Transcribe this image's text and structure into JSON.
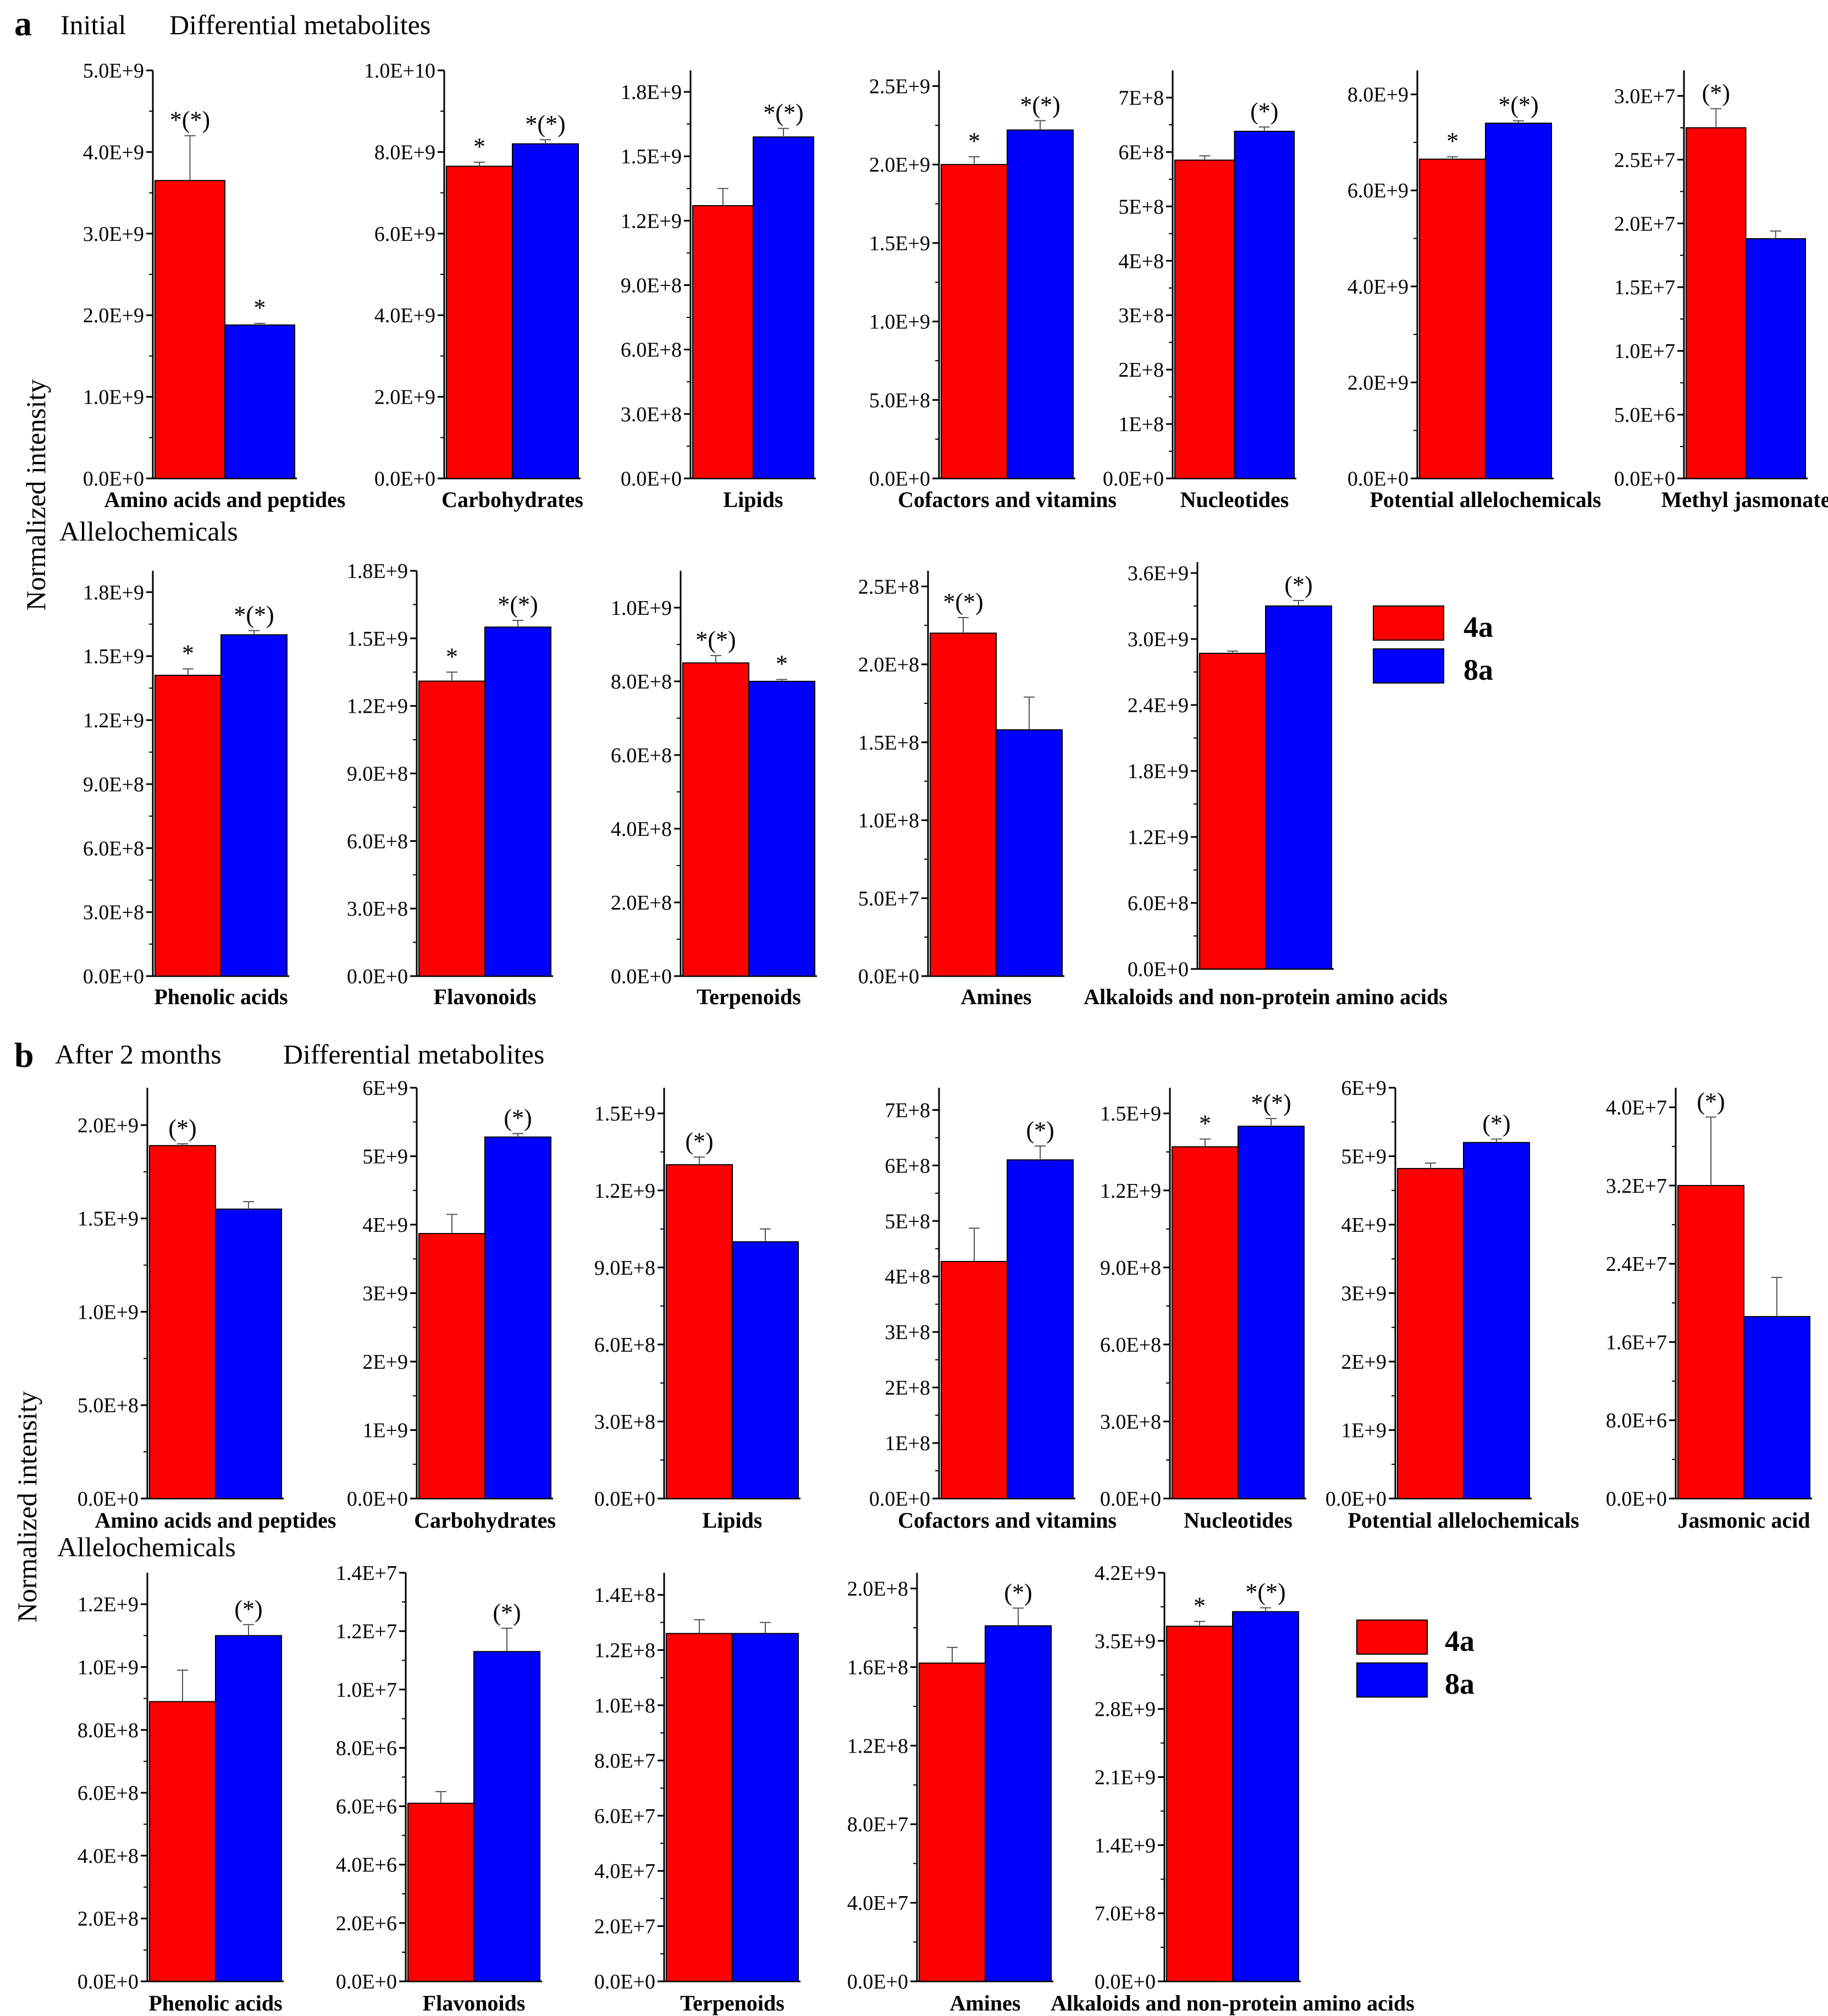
{
  "figure": {
    "legend": [
      {
        "label": "4a",
        "color": "#ff0000"
      },
      {
        "label": "8a",
        "color": "#0000ff"
      }
    ],
    "ylabel": "Normalized intensity"
  },
  "panels": [
    {
      "letter": "a",
      "title_left": "Initial",
      "title_right": "Differential metabolites",
      "row2_title": "Allelochemicals"
    },
    {
      "letter": "b",
      "title_left": "After 2 months",
      "title_right": "Differential metabolites",
      "row2_title": "Allelochemicals"
    }
  ],
  "chart_data": [
    {
      "type": "bar",
      "panel": "a",
      "row": 1,
      "title": "Amino acids and peptides",
      "categories": [
        "4a",
        "8a"
      ],
      "values": [
        3650000000.0,
        1880000000.0
      ],
      "errors": [
        550000000.0,
        20000000.0
      ],
      "sig": [
        "*(*)",
        "*"
      ],
      "ylim": [
        0,
        5000000000.0
      ],
      "ticks": [
        "0.0E+0",
        "1.0E+9",
        "2.0E+9",
        "3.0E+9",
        "4.0E+9",
        "5.0E+9"
      ],
      "tick_values": [
        0,
        1000000000.0,
        2000000000.0,
        3000000000.0,
        4000000000.0,
        5000000000.0
      ]
    },
    {
      "type": "bar",
      "panel": "a",
      "row": 1,
      "title": "Carbohydrates",
      "categories": [
        "4a",
        "8a"
      ],
      "values": [
        7650000000.0,
        8200000000.0
      ],
      "errors": [
        100000000.0,
        100000000.0
      ],
      "sig": [
        "*",
        "*(*)"
      ],
      "ylim": [
        0,
        10000000000.0
      ],
      "ticks": [
        "0.0E+0",
        "2.0E+9",
        "4.0E+9",
        "6.0E+9",
        "8.0E+9",
        "1.0E+10"
      ],
      "tick_values": [
        0,
        2000000000.0,
        4000000000.0,
        6000000000.0,
        8000000000.0,
        10000000000.0
      ]
    },
    {
      "type": "bar",
      "panel": "a",
      "row": 1,
      "title": "Lipids",
      "categories": [
        "4a",
        "8a"
      ],
      "values": [
        1270000000.0,
        1590000000.0
      ],
      "errors": [
        80000000.0,
        40000000.0
      ],
      "sig": [
        "",
        "*(*)"
      ],
      "ylim": [
        0,
        1900000000.0
      ],
      "ticks": [
        "0.0E+0",
        "3.0E+8",
        "6.0E+8",
        "9.0E+8",
        "1.2E+9",
        "1.5E+9",
        "1.8E+9"
      ],
      "tick_values": [
        0,
        300000000.0,
        600000000.0,
        900000000.0,
        1200000000.0,
        1500000000.0,
        1800000000.0
      ]
    },
    {
      "type": "bar",
      "panel": "a",
      "row": 1,
      "title": "Cofactors and vitamins",
      "categories": [
        "4a",
        "8a"
      ],
      "values": [
        2000000000.0,
        2220000000.0
      ],
      "errors": [
        50000000.0,
        60000000.0
      ],
      "sig": [
        "*",
        "*(*)"
      ],
      "ylim": [
        0,
        2600000000.0
      ],
      "ticks": [
        "0.0E+0",
        "5.0E+8",
        "1.0E+9",
        "1.5E+9",
        "2.0E+9",
        "2.5E+9"
      ],
      "tick_values": [
        0,
        500000000.0,
        1000000000.0,
        1500000000.0,
        2000000000.0,
        2500000000.0
      ]
    },
    {
      "type": "bar",
      "panel": "a",
      "row": 1,
      "title": "Nucleotides",
      "categories": [
        "4a",
        "8a"
      ],
      "values": [
        585000000.0,
        638000000.0
      ],
      "errors": [
        8000000.0,
        8000000.0
      ],
      "sig": [
        "",
        "(*)"
      ],
      "ylim": [
        0,
        750000000.0
      ],
      "ticks": [
        "0.0E+0",
        "1E+8",
        "2E+8",
        "3E+8",
        "4E+8",
        "5E+8",
        "6E+8",
        "7E+8"
      ],
      "tick_values": [
        0,
        100000000.0,
        200000000.0,
        300000000.0,
        400000000.0,
        500000000.0,
        600000000.0,
        700000000.0
      ]
    },
    {
      "type": "bar",
      "panel": "a",
      "row": 1,
      "title": "Potential allelochemicals",
      "categories": [
        "4a",
        "8a"
      ],
      "values": [
        6650000000.0,
        7400000000.0
      ],
      "errors": [
        50000000.0,
        50000000.0
      ],
      "sig": [
        "*",
        "*(*)"
      ],
      "ylim": [
        0,
        8500000000.0
      ],
      "ticks": [
        "0.0E+0",
        "2.0E+9",
        "4.0E+9",
        "6.0E+9",
        "8.0E+9"
      ],
      "tick_values": [
        0,
        2000000000.0,
        4000000000.0,
        6000000000.0,
        8000000000.0
      ]
    },
    {
      "type": "bar",
      "panel": "a",
      "row": 1,
      "title": "Methyl jasmonate",
      "categories": [
        "4a",
        "8a"
      ],
      "values": [
        27500000.0,
        18800000.0
      ],
      "errors": [
        1500000.0,
        600000.0
      ],
      "sig": [
        "(*)",
        ""
      ],
      "ylim": [
        0,
        32000000.0
      ],
      "ticks": [
        "0.0E+0",
        "5.0E+6",
        "1.0E+7",
        "1.5E+7",
        "2.0E+7",
        "2.5E+7",
        "3.0E+7"
      ],
      "tick_values": [
        0,
        5000000.0,
        10000000.0,
        15000000.0,
        20000000.0,
        25000000.0,
        30000000.0
      ]
    },
    {
      "type": "bar",
      "panel": "a",
      "row": 2,
      "title": "Phenolic acids",
      "categories": [
        "4a",
        "8a"
      ],
      "values": [
        1410000000.0,
        1600000000.0
      ],
      "errors": [
        30000000.0,
        20000000.0
      ],
      "sig": [
        "*",
        "*(*)"
      ],
      "ylim": [
        0,
        1900000000.0
      ],
      "ticks": [
        "0.0E+0",
        "3.0E+8",
        "6.0E+8",
        "9.0E+8",
        "1.2E+9",
        "1.5E+9",
        "1.8E+9"
      ],
      "tick_values": [
        0,
        300000000.0,
        600000000.0,
        900000000.0,
        1200000000.0,
        1500000000.0,
        1800000000.0
      ]
    },
    {
      "type": "bar",
      "panel": "a",
      "row": 2,
      "title": "Flavonoids",
      "categories": [
        "4a",
        "8a"
      ],
      "values": [
        1310000000.0,
        1550000000.0
      ],
      "errors": [
        40000000.0,
        30000000.0
      ],
      "sig": [
        "*",
        "*(*)"
      ],
      "ylim": [
        0,
        1800000000.0
      ],
      "ticks": [
        "0.0E+0",
        "3.0E+8",
        "6.0E+8",
        "9.0E+8",
        "1.2E+9",
        "1.5E+9",
        "1.8E+9"
      ],
      "tick_values": [
        0,
        300000000.0,
        600000000.0,
        900000000.0,
        1200000000.0,
        1500000000.0,
        1800000000.0
      ]
    },
    {
      "type": "bar",
      "panel": "a",
      "row": 2,
      "title": "Terpenoids",
      "categories": [
        "4a",
        "8a"
      ],
      "values": [
        850000000.0,
        800000000.0
      ],
      "errors": [
        20000000.0,
        5000000.0
      ],
      "sig": [
        "*(*)",
        "*"
      ],
      "ylim": [
        0,
        1100000000.0
      ],
      "ticks": [
        "0.0E+0",
        "2.0E+8",
        "4.0E+8",
        "6.0E+8",
        "8.0E+8",
        "1.0E+9"
      ],
      "tick_values": [
        0,
        200000000.0,
        400000000.0,
        600000000.0,
        800000000.0,
        1000000000.0
      ]
    },
    {
      "type": "bar",
      "panel": "a",
      "row": 2,
      "title": "Amines",
      "categories": [
        "4a",
        "8a"
      ],
      "values": [
        220000000.0,
        158000000.0
      ],
      "errors": [
        10000000.0,
        21000000.0
      ],
      "sig": [
        "*(*)",
        ""
      ],
      "ylim": [
        0,
        260000000.0
      ],
      "ticks": [
        "0.0E+0",
        "5.0E+7",
        "1.0E+8",
        "1.5E+8",
        "2.0E+8",
        "2.5E+8"
      ],
      "tick_values": [
        0,
        50000000.0,
        100000000.0,
        150000000.0,
        200000000.0,
        250000000.0
      ]
    },
    {
      "type": "bar",
      "panel": "a",
      "row": 2,
      "title": "Alkaloids and non-protein amino acids",
      "categories": [
        "4a",
        "8a"
      ],
      "values": [
        2870000000.0,
        3300000000.0
      ],
      "errors": [
        20000000.0,
        50000000.0
      ],
      "sig": [
        "",
        "(*)"
      ],
      "ylim": [
        0,
        3700000000.0
      ],
      "ticks": [
        "0.0E+0",
        "6.0E+8",
        "1.2E+9",
        "1.8E+9",
        "2.4E+9",
        "3.0E+9",
        "3.6E+9"
      ],
      "tick_values": [
        0,
        600000000.0,
        1200000000.0,
        1800000000.0,
        2400000000.0,
        3000000000.0,
        3600000000.0
      ]
    },
    {
      "type": "bar",
      "panel": "b",
      "row": 1,
      "title": "Amino acids and peptides",
      "categories": [
        "4a",
        "8a"
      ],
      "values": [
        1890000000.0,
        1550000000.0
      ],
      "errors": [
        10000000.0,
        40000000.0
      ],
      "sig": [
        "(*)",
        ""
      ],
      "ylim": [
        0,
        2200000000.0
      ],
      "ticks": [
        "0.0E+0",
        "5.0E+8",
        "1.0E+9",
        "1.5E+9",
        "2.0E+9"
      ],
      "tick_values": [
        0,
        500000000.0,
        1000000000.0,
        1500000000.0,
        2000000000.0
      ]
    },
    {
      "type": "bar",
      "panel": "b",
      "row": 1,
      "title": "Carbohydrates",
      "categories": [
        "4a",
        "8a"
      ],
      "values": [
        3870000000.0,
        5280000000.0
      ],
      "errors": [
        280000000.0,
        50000000.0
      ],
      "sig": [
        "",
        "(*)"
      ],
      "ylim": [
        0,
        6000000000.0
      ],
      "ticks": [
        "0.0E+0",
        "1E+9",
        "2E+9",
        "3E+9",
        "4E+9",
        "5E+9",
        "6E+9"
      ],
      "tick_values": [
        0,
        1000000000.0,
        2000000000.0,
        3000000000.0,
        4000000000.0,
        5000000000.0,
        6000000000.0
      ]
    },
    {
      "type": "bar",
      "panel": "b",
      "row": 1,
      "title": "Lipids",
      "categories": [
        "4a",
        "8a"
      ],
      "values": [
        1300000000.0,
        1000000000.0
      ],
      "errors": [
        30000000.0,
        50000000.0
      ],
      "sig": [
        "(*)",
        ""
      ],
      "ylim": [
        0,
        1600000000.0
      ],
      "ticks": [
        "0.0E+0",
        "3.0E+8",
        "6.0E+8",
        "9.0E+8",
        "1.2E+9",
        "1.5E+9"
      ],
      "tick_values": [
        0,
        300000000.0,
        600000000.0,
        900000000.0,
        1200000000.0,
        1500000000.0
      ]
    },
    {
      "type": "bar",
      "panel": "b",
      "row": 1,
      "title": "Cofactors and vitamins",
      "categories": [
        "4a",
        "8a"
      ],
      "values": [
        427000000.0,
        610000000.0
      ],
      "errors": [
        60000000.0,
        25000000.0
      ],
      "sig": [
        "",
        "(*)"
      ],
      "ylim": [
        0,
        740000000.0
      ],
      "ticks": [
        "0.0E+0",
        "1E+8",
        "2E+8",
        "3E+8",
        "4E+8",
        "5E+8",
        "6E+8",
        "7E+8"
      ],
      "tick_values": [
        0,
        100000000.0,
        200000000.0,
        300000000.0,
        400000000.0,
        500000000.0,
        600000000.0,
        700000000.0
      ]
    },
    {
      "type": "bar",
      "panel": "b",
      "row": 1,
      "title": "Nucleotides",
      "categories": [
        "4a",
        "8a"
      ],
      "values": [
        1370000000.0,
        1450000000.0
      ],
      "errors": [
        30000000.0,
        30000000.0
      ],
      "sig": [
        "*",
        "*(*)"
      ],
      "ylim": [
        0,
        1600000000.0
      ],
      "ticks": [
        "0.0E+0",
        "3.0E+8",
        "6.0E+8",
        "9.0E+8",
        "1.2E+9",
        "1.5E+9"
      ],
      "tick_values": [
        0,
        300000000.0,
        600000000.0,
        900000000.0,
        1200000000.0,
        1500000000.0
      ]
    },
    {
      "type": "bar",
      "panel": "b",
      "row": 1,
      "title": "Potential allelochemicals",
      "categories": [
        "4a",
        "8a"
      ],
      "values": [
        4820000000.0,
        5200000000.0
      ],
      "errors": [
        80000000.0,
        50000000.0
      ],
      "sig": [
        "",
        "(*)"
      ],
      "ylim": [
        0,
        6000000000.0
      ],
      "ticks": [
        "0.0E+0",
        "1E+9",
        "2E+9",
        "3E+9",
        "4E+9",
        "5E+9",
        "6E+9"
      ],
      "tick_values": [
        0,
        1000000000.0,
        2000000000.0,
        3000000000.0,
        4000000000.0,
        5000000000.0,
        6000000000.0
      ]
    },
    {
      "type": "bar",
      "panel": "b",
      "row": 1,
      "title": "Jasmonic acid",
      "categories": [
        "4a",
        "8a"
      ],
      "values": [
        32000000.0,
        18600000.0
      ],
      "errors": [
        7000000.0,
        4000000.0
      ],
      "sig": [
        "(*)",
        ""
      ],
      "ylim": [
        0,
        42000000.0
      ],
      "ticks": [
        "0.0E+0",
        "8.0E+6",
        "1.6E+7",
        "2.4E+7",
        "3.2E+7",
        "4.0E+7"
      ],
      "tick_values": [
        0,
        8000000.0,
        16000000.0,
        24000000.0,
        32000000.0,
        40000000.0
      ]
    },
    {
      "type": "bar",
      "panel": "b",
      "row": 2,
      "title": "Phenolic acids",
      "categories": [
        "4a",
        "8a"
      ],
      "values": [
        890000000.0,
        1100000000.0
      ],
      "errors": [
        100000000.0,
        35000000.0
      ],
      "sig": [
        "",
        "(*)"
      ],
      "ylim": [
        0,
        1300000000.0
      ],
      "ticks": [
        "0.0E+0",
        "2.0E+8",
        "4.0E+8",
        "6.0E+8",
        "8.0E+8",
        "1.0E+9",
        "1.2E+9"
      ],
      "tick_values": [
        0,
        200000000.0,
        400000000.0,
        600000000.0,
        800000000.0,
        1000000000.0,
        1200000000.0
      ]
    },
    {
      "type": "bar",
      "panel": "b",
      "row": 2,
      "title": "Flavonoids",
      "categories": [
        "4a",
        "8a"
      ],
      "values": [
        6100000.0,
        11300000.0
      ],
      "errors": [
        400000.0,
        800000.0
      ],
      "sig": [
        "",
        "(*)"
      ],
      "ylim": [
        0,
        14000000.0
      ],
      "ticks": [
        "0.0E+0",
        "2.0E+6",
        "4.0E+6",
        "6.0E+6",
        "8.0E+6",
        "1.0E+7",
        "1.2E+7",
        "1.4E+7"
      ],
      "tick_values": [
        0,
        2000000.0,
        4000000.0,
        6000000.0,
        8000000.0,
        10000000.0,
        12000000.0,
        14000000.0
      ]
    },
    {
      "type": "bar",
      "panel": "b",
      "row": 2,
      "title": "Terpenoids",
      "categories": [
        "4a",
        "8a"
      ],
      "values": [
        126000000.0,
        126000000.0
      ],
      "errors": [
        5000000.0,
        4000000.0
      ],
      "sig": [
        "",
        ""
      ],
      "ylim": [
        0,
        148000000.0
      ],
      "ticks": [
        "0.0E+0",
        "2.0E+7",
        "4.0E+7",
        "6.0E+7",
        "8.0E+7",
        "1.0E+8",
        "1.2E+8",
        "1.4E+8"
      ],
      "tick_values": [
        0,
        20000000.0,
        40000000.0,
        60000000.0,
        80000000.0,
        100000000.0,
        120000000.0,
        140000000.0
      ]
    },
    {
      "type": "bar",
      "panel": "b",
      "row": 2,
      "title": "Amines",
      "categories": [
        "4a",
        "8a"
      ],
      "values": [
        162000000.0,
        181000000.0
      ],
      "errors": [
        8000000.0,
        9000000.0
      ],
      "sig": [
        "",
        "(*)"
      ],
      "ylim": [
        0,
        208000000.0
      ],
      "ticks": [
        "0.0E+0",
        "4.0E+7",
        "8.0E+7",
        "1.2E+8",
        "1.6E+8",
        "2.0E+8"
      ],
      "tick_values": [
        0,
        40000000.0,
        80000000.0,
        120000000.0,
        160000000.0,
        200000000.0
      ]
    },
    {
      "type": "bar",
      "panel": "b",
      "row": 2,
      "title": "Alkaloids and non-protein amino acids",
      "categories": [
        "4a",
        "8a"
      ],
      "values": [
        3650000000.0,
        3800000000.0
      ],
      "errors": [
        50000000.0,
        40000000.0
      ],
      "sig": [
        "*",
        "*(*)"
      ],
      "ylim": [
        0,
        4200000000.0
      ],
      "ticks": [
        "0.0E+0",
        "7.0E+8",
        "1.4E+9",
        "2.1E+9",
        "2.8E+9",
        "3.5E+9",
        "4.2E+9"
      ],
      "tick_values": [
        0,
        700000000.0,
        1400000000.0,
        2100000000.0,
        2800000000.0,
        3500000000.0,
        4200000000.0
      ]
    }
  ]
}
